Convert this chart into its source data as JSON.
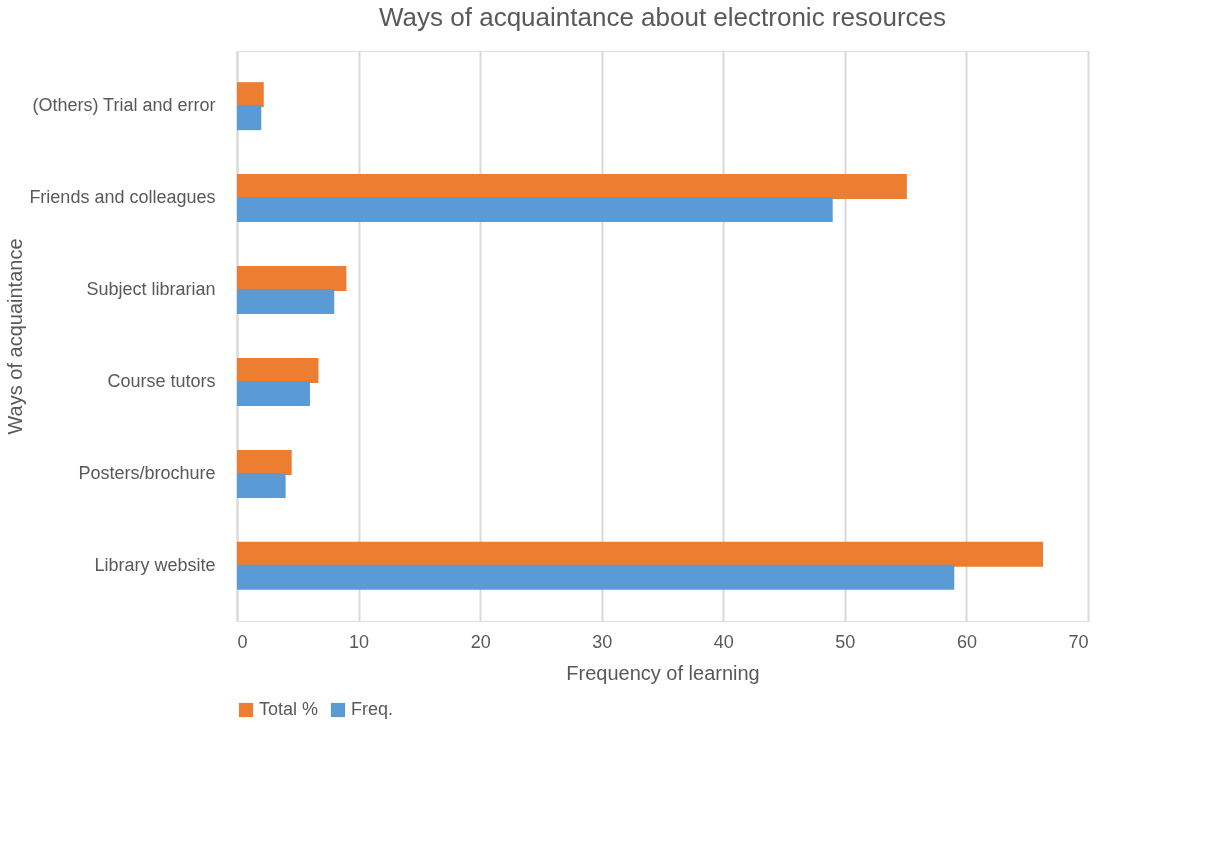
{
  "chart_data": {
    "type": "bar",
    "orientation": "horizontal",
    "title": "Ways of acquaintance about electronic resources",
    "xlabel": "Frequency of learning",
    "ylabel": "Ways of acquaintance",
    "categories": [
      "(Others) Trial and error",
      "Friends and colleagues",
      "Subject librarian",
      "Course tutors",
      "Posters/brochure",
      "Library website"
    ],
    "series": [
      {
        "name": "Total %",
        "color": "#ed7d31",
        "values": [
          2.2,
          55.1,
          9.0,
          6.7,
          4.5,
          66.3
        ]
      },
      {
        "name": "Freq.",
        "color": "#5b9bd5",
        "values": [
          2.0,
          49.0,
          8.0,
          6.0,
          4.0,
          59.0
        ]
      }
    ],
    "xlim": [
      0,
      70
    ],
    "xticks": [
      0,
      10,
      20,
      30,
      40,
      50,
      60,
      70
    ],
    "grid": "x",
    "legend": "bottom"
  }
}
